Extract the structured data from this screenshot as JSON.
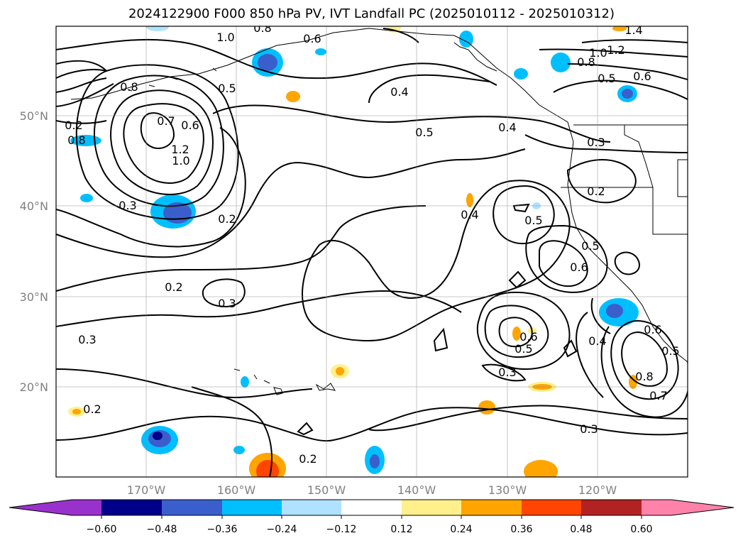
{
  "title": "2024122900 F000 850 hPa PV, IVT Landfall PC (2025010112 - 2025010312)",
  "lat_labels": [
    "50°N",
    "40°N",
    "30°N",
    "20°N"
  ],
  "lon_labels": [
    "170°W",
    "160°W",
    "150°W",
    "140°W",
    "130°W",
    "120°W"
  ],
  "contour_labels": [
    "0.8",
    "0.6",
    "1.0",
    "0.8",
    "0.6",
    "0.5",
    "0.4",
    "1.4",
    "1.2",
    "1.0",
    "0.8",
    "0.5",
    "0.6",
    "0.2",
    "0.8",
    "0.7",
    "1.2",
    "1.0",
    "0.5",
    "0.4",
    "0.3",
    "0.3",
    "0.2",
    "0.4",
    "0.2",
    "0.5",
    "0.5",
    "0.6",
    "0.2",
    "0.3",
    "0.3",
    "0.6",
    "0.5",
    "0.4",
    "0.6",
    "0.5",
    "0.8",
    "0.7",
    "0.3",
    "0.2",
    "0.3",
    "0.2"
  ],
  "colorbar": {
    "ticks": [
      "−0.60",
      "−0.48",
      "−0.36",
      "−0.24",
      "−0.12",
      "0.12",
      "0.24",
      "0.36",
      "0.48",
      "0.60"
    ],
    "colors": [
      "#9932cc",
      "#00008b",
      "#3a5fcd",
      "#00bfff",
      "#b0e2ff",
      "#ffffff",
      "#fff08c",
      "#ffa500",
      "#ff4500",
      "#b22222",
      "#ff82ab",
      "#ff82ab"
    ]
  }
}
